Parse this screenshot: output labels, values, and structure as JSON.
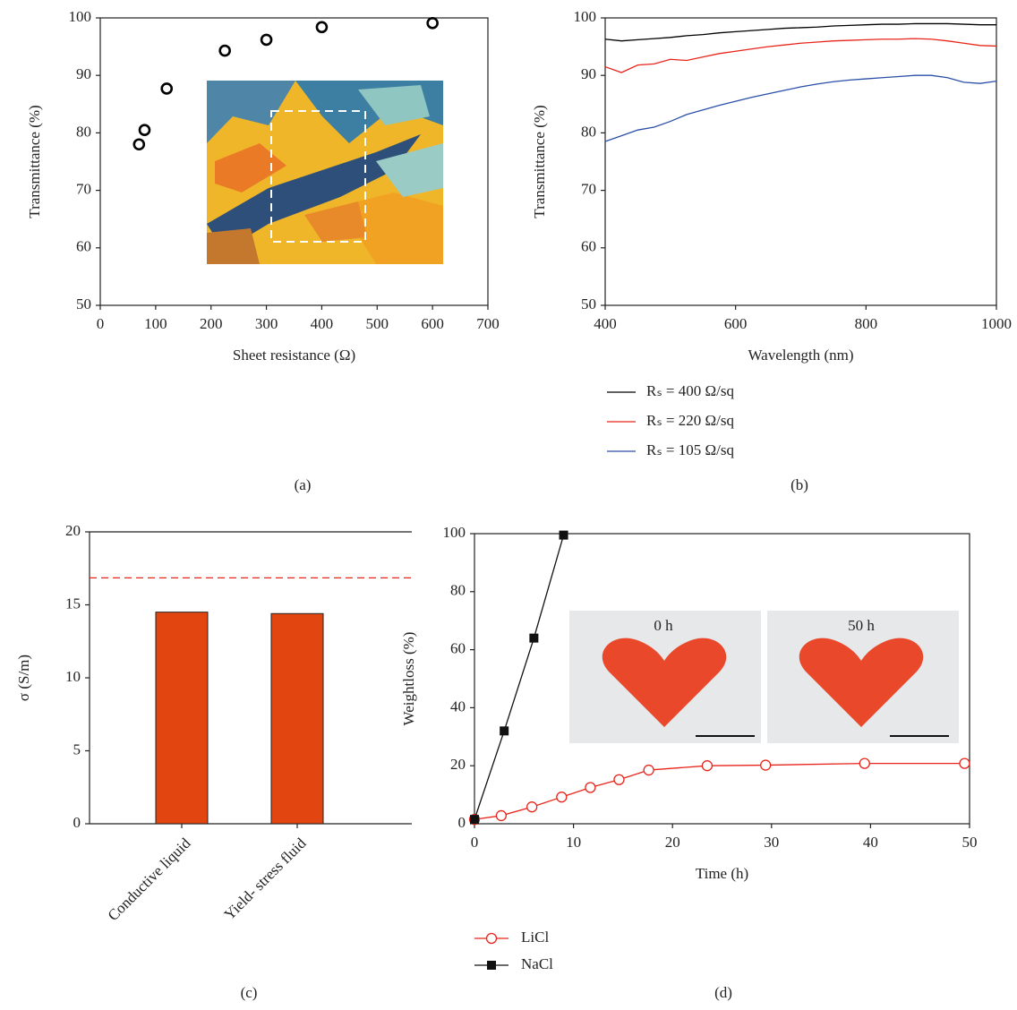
{
  "chart_data": [
    {
      "type": "scatter",
      "caption": "(a)",
      "xlabel": "Sheet resistance (Ω)",
      "ylabel": "Transmittance (%)",
      "x": [
        70,
        80,
        120,
        225,
        300,
        400,
        600
      ],
      "values": [
        78,
        80.5,
        87.7,
        94.3,
        96.2,
        98.4,
        99.1
      ],
      "color": "#000000",
      "xlim": [
        0,
        700
      ],
      "xticks": [
        0,
        100,
        200,
        300,
        400,
        500,
        600,
        700
      ],
      "ylim": [
        50,
        100
      ],
      "yticks": [
        50,
        60,
        70,
        80,
        90,
        100
      ]
    },
    {
      "type": "line",
      "caption": "(b)",
      "xlabel": "Wavelength (nm)",
      "ylabel": "Transmittance (%)",
      "x": [
        400,
        425,
        450,
        475,
        500,
        525,
        550,
        575,
        600,
        625,
        650,
        675,
        700,
        725,
        750,
        775,
        800,
        825,
        850,
        875,
        900,
        925,
        950,
        975,
        1000
      ],
      "series": [
        {
          "name": "Rₛ = 400 Ω/sq",
          "color": "#000000",
          "values": [
            96.3,
            96.0,
            96.2,
            96.4,
            96.6,
            96.9,
            97.1,
            97.4,
            97.6,
            97.8,
            98.0,
            98.2,
            98.3,
            98.4,
            98.6,
            98.7,
            98.8,
            98.9,
            98.9,
            99.0,
            99.0,
            99.0,
            98.9,
            98.8,
            98.8
          ]
        },
        {
          "name": "Rₛ = 220 Ω/sq",
          "color": "#e8251b",
          "values": [
            91.5,
            90.5,
            91.8,
            92.0,
            92.8,
            92.6,
            93.2,
            93.8,
            94.2,
            94.6,
            95.0,
            95.3,
            95.6,
            95.8,
            96.0,
            96.1,
            96.2,
            96.3,
            96.3,
            96.4,
            96.3,
            96.0,
            95.6,
            95.2,
            95.1
          ]
        },
        {
          "name": "Rₛ = 105 Ω/sq",
          "color": "#2a4fa8",
          "values": [
            78.5,
            79.5,
            80.5,
            81.0,
            82.0,
            83.2,
            84.0,
            84.8,
            85.5,
            86.2,
            86.8,
            87.4,
            88.0,
            88.5,
            88.9,
            89.2,
            89.4,
            89.6,
            89.8,
            90.0,
            90.0,
            89.6,
            88.8,
            88.6,
            89.0
          ]
        }
      ],
      "xlim": [
        400,
        1000
      ],
      "xticks": [
        400,
        600,
        800,
        1000
      ],
      "ylim": [
        50,
        100
      ],
      "yticks": [
        50,
        60,
        70,
        80,
        90,
        100
      ]
    },
    {
      "type": "bar",
      "caption": "(c)",
      "ylabel": "σ (S/m)",
      "categories": [
        "Conductive liquid",
        "Yield- stress fluid"
      ],
      "values": [
        14.5,
        14.4
      ],
      "color": "#e2450f",
      "reference_line": 16.85,
      "reference_color": "#e8251b",
      "ylim": [
        0,
        20
      ],
      "yticks": [
        0,
        5,
        10,
        15,
        20
      ]
    },
    {
      "type": "line",
      "caption": "(d)",
      "xlabel": "Time (h)",
      "ylabel": "Weightloss (%)",
      "annotations": [
        "0 h",
        "50 h"
      ],
      "series": [
        {
          "name": "LiCl",
          "color": "#e8251b",
          "marker": "circle",
          "x": [
            0,
            2.7,
            5.8,
            8.8,
            11.7,
            14.6,
            17.6,
            23.5,
            29.4,
            39.4,
            49.5
          ],
          "values": [
            1.5,
            2.8,
            5.8,
            9.2,
            12.5,
            15.2,
            18.5,
            20,
            20.2,
            20.8,
            20.8
          ]
        },
        {
          "name": "NaCl",
          "color": "#111111",
          "marker": "square",
          "x": [
            0,
            3,
            6,
            9
          ],
          "values": [
            1.5,
            32,
            64,
            99.5
          ]
        }
      ],
      "xlim": [
        0,
        50
      ],
      "xticks": [
        0,
        10,
        20,
        30,
        40,
        50
      ],
      "ylim": [
        0,
        100
      ],
      "yticks": [
        0,
        20,
        40,
        60,
        80,
        100
      ]
    }
  ]
}
